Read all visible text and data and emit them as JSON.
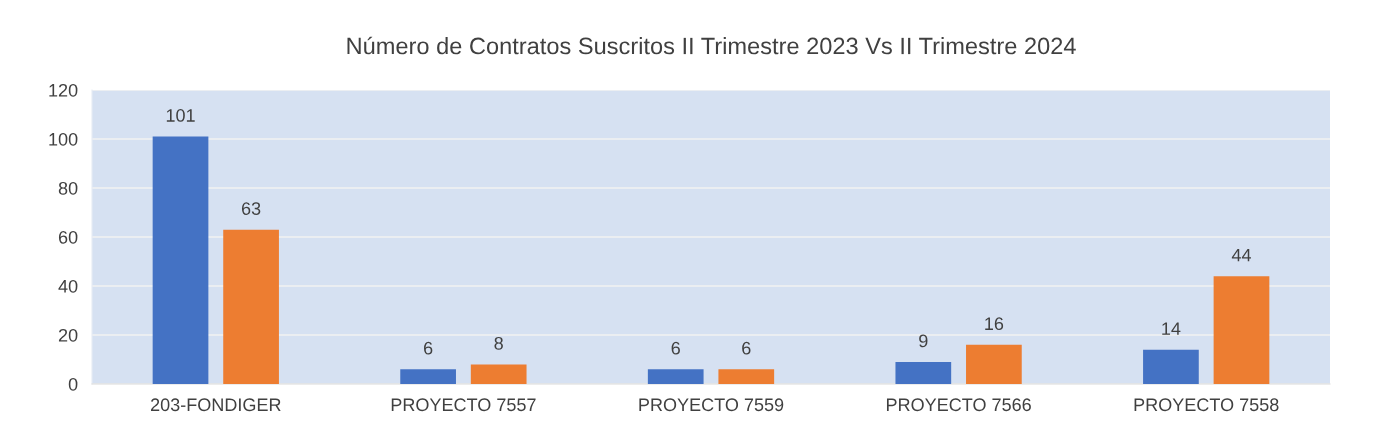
{
  "chart_data": {
    "type": "bar",
    "title": "Número de Contratos Suscritos II Trimestre 2023 Vs II Trimestre 2024",
    "categories": [
      "203-FONDIGER",
      "PROYECTO 7557",
      "PROYECTO 7559",
      "PROYECTO 7566",
      "PROYECTO 7558"
    ],
    "series": [
      {
        "color": "#4472c4",
        "values": [
          101,
          6,
          6,
          9,
          14
        ]
      },
      {
        "color": "#ed7d31",
        "values": [
          63,
          8,
          6,
          16,
          44
        ]
      }
    ],
    "ylim": [
      0,
      120
    ],
    "yticks": [
      0,
      20,
      40,
      60,
      80,
      100,
      120
    ],
    "grid": "y",
    "data_labels": true
  }
}
